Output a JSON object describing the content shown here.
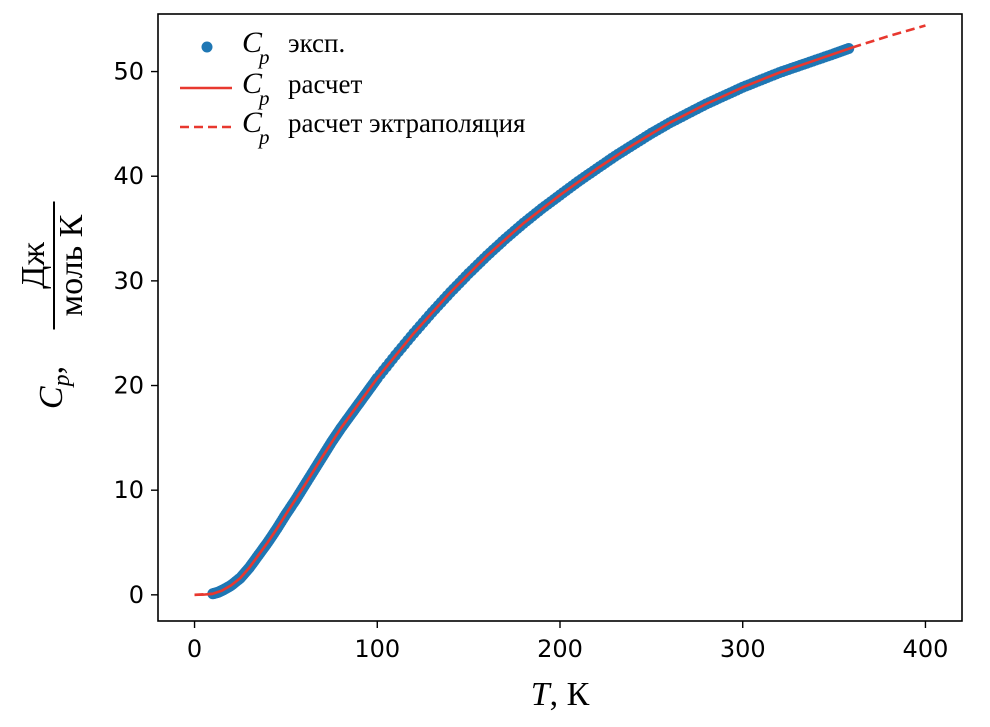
{
  "chart_data": {
    "type": "line",
    "xlabel": {
      "symbol": "T",
      "unit": ", К"
    },
    "ylabel": {
      "symbol": "C",
      "subscript": "p",
      "sep": ",",
      "numerator": "Дж",
      "denominator": "моль К"
    },
    "xlim": [
      -20,
      420
    ],
    "ylim": [
      -2.5,
      55.5
    ],
    "xticks": [
      0,
      100,
      200,
      300,
      400
    ],
    "yticks": [
      0,
      10,
      20,
      30,
      40,
      50
    ],
    "grid": false,
    "legend_position": "top-left",
    "colors": {
      "experiment": "#1f77b4",
      "calculation": "#e8382f"
    },
    "series": [
      {
        "name": "эксп.",
        "legend_symbol": "C",
        "legend_subscript": "p",
        "style": "markers",
        "x": [
          10,
          13,
          16,
          20,
          25,
          30,
          35,
          40,
          45,
          50,
          55,
          60,
          65,
          70,
          75,
          80,
          85,
          90,
          95,
          100,
          110,
          120,
          130,
          140,
          150,
          160,
          170,
          180,
          190,
          200,
          210,
          220,
          230,
          240,
          250,
          260,
          270,
          280,
          290,
          300,
          310,
          320,
          330,
          340,
          350,
          358
        ],
        "y": [
          0.1,
          0.25,
          0.5,
          0.9,
          1.6,
          2.6,
          3.8,
          5.0,
          6.3,
          7.7,
          9.0,
          10.4,
          11.8,
          13.2,
          14.6,
          15.9,
          17.1,
          18.3,
          19.5,
          20.7,
          22.9,
          25.0,
          27.0,
          28.9,
          30.7,
          32.4,
          34.0,
          35.5,
          36.9,
          38.2,
          39.5,
          40.7,
          41.9,
          43.0,
          44.1,
          45.1,
          46.0,
          46.9,
          47.7,
          48.5,
          49.2,
          49.9,
          50.5,
          51.1,
          51.7,
          52.2
        ]
      },
      {
        "name": "расчет",
        "legend_symbol": "C",
        "legend_subscript": "p",
        "style": "solid",
        "x": [
          0,
          5,
          10,
          15,
          20,
          25,
          30,
          35,
          40,
          45,
          50,
          60,
          70,
          80,
          90,
          100,
          120,
          140,
          160,
          180,
          200,
          220,
          240,
          260,
          280,
          300,
          320,
          340,
          360
        ],
        "y": [
          0,
          0.02,
          0.1,
          0.4,
          0.9,
          1.6,
          2.6,
          3.8,
          5.0,
          6.3,
          7.7,
          10.4,
          13.2,
          15.9,
          18.3,
          20.7,
          25.0,
          28.9,
          32.4,
          35.5,
          38.2,
          40.7,
          43.0,
          45.1,
          46.9,
          48.5,
          49.9,
          51.1,
          52.3
        ]
      },
      {
        "name": "расчет эктраполяция",
        "legend_symbol": "C",
        "legend_subscript": "p",
        "style": "dashed",
        "x": [
          0,
          10,
          360,
          380,
          400
        ],
        "y": [
          0,
          0.1,
          52.3,
          53.4,
          54.4
        ]
      }
    ]
  }
}
